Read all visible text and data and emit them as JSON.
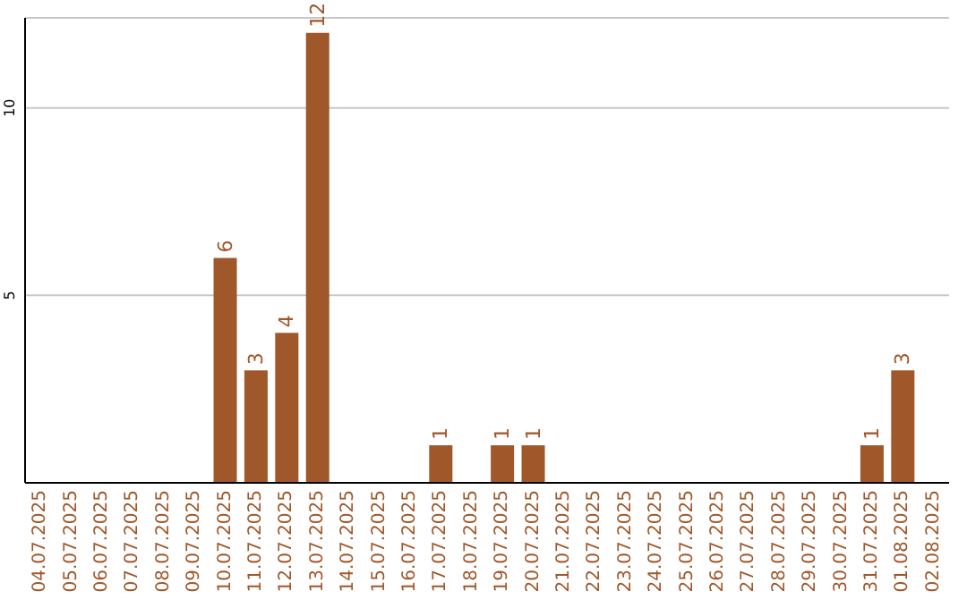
{
  "chart_data": {
    "type": "bar",
    "categories": [
      "04.07.2025",
      "05.07.2025",
      "06.07.2025",
      "07.07.2025",
      "08.07.2025",
      "09.07.2025",
      "10.07.2025",
      "11.07.2025",
      "12.07.2025",
      "13.07.2025",
      "14.07.2025",
      "15.07.2025",
      "16.07.2025",
      "17.07.2025",
      "18.07.2025",
      "19.07.2025",
      "20.07.2025",
      "21.07.2025",
      "22.07.2025",
      "23.07.2025",
      "24.07.2025",
      "25.07.2025",
      "26.07.2025",
      "27.07.2025",
      "28.07.2025",
      "29.07.2025",
      "30.07.2025",
      "31.07.2025",
      "01.08.2025",
      "02.08.2025"
    ],
    "values": [
      null,
      null,
      null,
      null,
      null,
      null,
      6,
      3,
      4,
      12,
      null,
      null,
      null,
      1,
      null,
      1,
      1,
      null,
      null,
      null,
      null,
      null,
      null,
      null,
      null,
      null,
      null,
      1,
      3,
      null
    ],
    "color": "#a0572a",
    "ylim": [
      0,
      12.4
    ],
    "yticks": [
      5,
      10
    ],
    "grid": "y",
    "data_labels": true
  }
}
